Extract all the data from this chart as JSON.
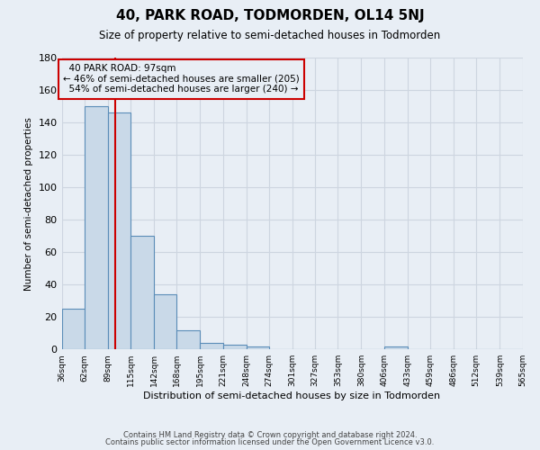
{
  "title": "40, PARK ROAD, TODMORDEN, OL14 5NJ",
  "subtitle": "Size of property relative to semi-detached houses in Todmorden",
  "bar_values": [
    25,
    150,
    146,
    70,
    34,
    12,
    4,
    3,
    2,
    0,
    0,
    0,
    0,
    0,
    2,
    0,
    0,
    0,
    0,
    0
  ],
  "bin_edges": [
    36,
    62,
    89,
    115,
    142,
    168,
    195,
    221,
    248,
    274,
    301,
    327,
    353,
    380,
    406,
    433,
    459,
    486,
    512,
    539,
    565
  ],
  "bin_labels": [
    "36sqm",
    "62sqm",
    "89sqm",
    "115sqm",
    "142sqm",
    "168sqm",
    "195sqm",
    "221sqm",
    "248sqm",
    "274sqm",
    "301sqm",
    "327sqm",
    "353sqm",
    "380sqm",
    "406sqm",
    "433sqm",
    "459sqm",
    "486sqm",
    "512sqm",
    "539sqm",
    "565sqm"
  ],
  "property_size": 97,
  "property_label": "40 PARK ROAD: 97sqm",
  "pct_smaller": 46,
  "pct_larger": 54,
  "n_smaller": 205,
  "n_larger": 240,
  "bar_color": "#c9d9e8",
  "bar_edge_color": "#5b8db8",
  "vline_color": "#cc0000",
  "annotation_box_edge_color": "#cc0000",
  "ylabel": "Number of semi-detached properties",
  "xlabel": "Distribution of semi-detached houses by size in Todmorden",
  "ylim": [
    0,
    180
  ],
  "yticks": [
    0,
    20,
    40,
    60,
    80,
    100,
    120,
    140,
    160,
    180
  ],
  "grid_color": "#cdd5e0",
  "bg_color": "#e8eef5",
  "footer1": "Contains HM Land Registry data © Crown copyright and database right 2024.",
  "footer2": "Contains public sector information licensed under the Open Government Licence v3.0."
}
